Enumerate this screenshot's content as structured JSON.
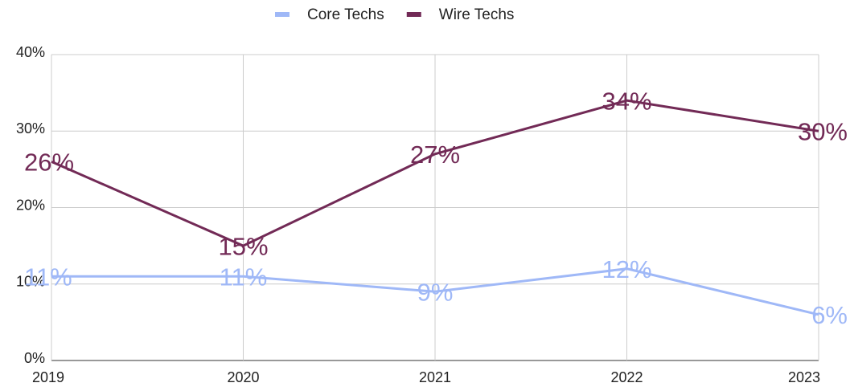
{
  "chart_data": {
    "type": "line",
    "categories": [
      "2019",
      "2020",
      "2021",
      "2022",
      "2023"
    ],
    "series": [
      {
        "name": "Core Techs",
        "color": "#9fb8f7",
        "values": [
          11,
          11,
          9,
          12,
          6
        ],
        "value_labels": [
          "11%",
          "11%",
          "9%",
          "12%",
          "6%"
        ]
      },
      {
        "name": "Wire Techs",
        "color": "#722a56",
        "values": [
          26,
          15,
          27,
          34,
          30
        ],
        "value_labels": [
          "26%",
          "15%",
          "27%",
          "34%",
          "30%"
        ]
      }
    ],
    "ylim": [
      0,
      40
    ],
    "yticks": [
      {
        "value": 0,
        "label": "0%"
      },
      {
        "value": 10,
        "label": "10%"
      },
      {
        "value": 20,
        "label": "20%"
      },
      {
        "value": 30,
        "label": "30%"
      },
      {
        "value": 40,
        "label": "40%"
      }
    ],
    "grid": true,
    "legend": "top"
  }
}
